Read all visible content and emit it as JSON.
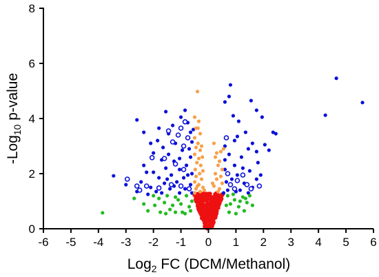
{
  "chart_data": {
    "type": "scatter",
    "title": "",
    "xlabel": {
      "base": "Log",
      "sub": "2",
      "rest": " FC (DCM/Methanol)"
    },
    "ylabel": {
      "base": "-Log",
      "sub": "10",
      "rest": " p-value"
    },
    "xlim": [
      -6,
      6
    ],
    "ylim": [
      0,
      8
    ],
    "xticks": [
      -6,
      -5,
      -4,
      -3,
      -2,
      -1,
      0,
      1,
      2,
      3,
      4,
      5,
      6
    ],
    "yticks": [
      0,
      2,
      4,
      6,
      8
    ],
    "grid": false,
    "colors": {
      "blue": "#0a10d8",
      "orange": "#f7a04a",
      "green": "#22bb22",
      "red": "#ee1111"
    },
    "point_groups": [
      {
        "id": "blue-filled",
        "color": "blue",
        "marker": "filled",
        "points": [
          [
            4.65,
            5.46
          ],
          [
            5.6,
            4.58
          ],
          [
            4.25,
            4.12
          ],
          [
            0.8,
            5.22
          ],
          [
            0.75,
            4.8
          ],
          [
            1.55,
            4.65
          ],
          [
            0.6,
            4.6
          ],
          [
            1.75,
            4.3
          ],
          [
            1.95,
            4.05
          ],
          [
            0.9,
            4.1
          ],
          [
            1.1,
            3.9
          ],
          [
            -1.55,
            4.25
          ],
          [
            -1.0,
            4.05
          ],
          [
            -0.85,
            4.3
          ],
          [
            -0.65,
            3.5
          ],
          [
            -1.3,
            3.75
          ],
          [
            -2.6,
            3.95
          ],
          [
            -2.35,
            3.5
          ],
          [
            -1.8,
            3.65
          ],
          [
            -1.45,
            3.45
          ],
          [
            -0.75,
            3.85
          ],
          [
            -0.55,
            3.6
          ],
          [
            2.45,
            3.45
          ],
          [
            2.35,
            3.5
          ],
          [
            1.35,
            3.5
          ],
          [
            1.6,
            3.1
          ],
          [
            2.05,
            3.05
          ],
          [
            1.05,
            3.35
          ],
          [
            0.95,
            3.2
          ],
          [
            0.6,
            3.0
          ],
          [
            1.75,
            2.8
          ],
          [
            2.2,
            2.85
          ],
          [
            1.45,
            2.9
          ],
          [
            1.2,
            2.6
          ],
          [
            0.75,
            2.7
          ],
          [
            0.6,
            2.5
          ],
          [
            1.8,
            2.4
          ],
          [
            0.95,
            2.3
          ],
          [
            1.25,
            2.2
          ],
          [
            0.6,
            2.15
          ],
          [
            1.5,
            2.1
          ],
          [
            1.9,
            1.95
          ],
          [
            1.05,
            1.95
          ],
          [
            0.85,
            1.8
          ],
          [
            0.65,
            1.7
          ],
          [
            1.3,
            1.65
          ],
          [
            1.6,
            1.5
          ],
          [
            0.7,
            1.4
          ],
          [
            1.0,
            1.35
          ],
          [
            1.45,
            1.3
          ],
          [
            0.55,
            1.3
          ],
          [
            1.75,
            1.8
          ],
          [
            1.15,
            1.4
          ],
          [
            -2.1,
            3.1
          ],
          [
            -1.65,
            2.95
          ],
          [
            -1.2,
            3.1
          ],
          [
            -0.6,
            3.15
          ],
          [
            -2.0,
            2.75
          ],
          [
            -1.45,
            2.7
          ],
          [
            -0.95,
            2.85
          ],
          [
            -0.65,
            2.6
          ],
          [
            -1.7,
            2.5
          ],
          [
            -1.25,
            2.45
          ],
          [
            -2.35,
            2.3
          ],
          [
            -0.8,
            2.3
          ],
          [
            -1.55,
            2.2
          ],
          [
            -1.05,
            2.15
          ],
          [
            -2.0,
            2.05
          ],
          [
            -0.6,
            2.0
          ],
          [
            -1.35,
            1.95
          ],
          [
            -1.8,
            1.85
          ],
          [
            -0.9,
            1.85
          ],
          [
            -2.45,
            1.7
          ],
          [
            -1.6,
            1.65
          ],
          [
            -1.15,
            1.7
          ],
          [
            -0.65,
            1.6
          ],
          [
            -2.1,
            1.5
          ],
          [
            -1.4,
            1.45
          ],
          [
            -0.85,
            1.45
          ],
          [
            -1.9,
            1.35
          ],
          [
            -2.6,
            1.35
          ],
          [
            -1.05,
            1.3
          ],
          [
            -0.6,
            1.3
          ],
          [
            -3.45,
            1.92
          ],
          [
            -3.0,
            1.6
          ],
          [
            -1.7,
            1.3
          ],
          [
            -2.2,
            1.25
          ],
          [
            -1.25,
            1.55
          ],
          [
            -0.7,
            2.9
          ],
          [
            -1.85,
            3.2
          ],
          [
            -1.05,
            2.55
          ],
          [
            -0.75,
            1.95
          ],
          [
            -2.25,
            2.05
          ],
          [
            -1.5,
            1.8
          ]
        ]
      },
      {
        "id": "blue-open",
        "color": "blue",
        "marker": "open",
        "points": [
          [
            -0.85,
            3.88
          ],
          [
            -1.0,
            3.65
          ],
          [
            -1.45,
            3.55
          ],
          [
            -1.1,
            3.4
          ],
          [
            -0.75,
            3.3
          ],
          [
            -1.3,
            3.15
          ],
          [
            -0.9,
            3.0
          ],
          [
            -2.05,
            2.58
          ],
          [
            -1.6,
            2.55
          ],
          [
            -1.2,
            2.35
          ],
          [
            -0.9,
            2.15
          ],
          [
            -2.25,
            1.55
          ],
          [
            -1.8,
            1.48
          ],
          [
            -1.35,
            1.6
          ],
          [
            -2.5,
            1.4
          ],
          [
            -2.95,
            1.8
          ],
          [
            -2.6,
            1.55
          ],
          [
            -1.0,
            1.55
          ],
          [
            -0.7,
            1.45
          ],
          [
            0.65,
            3.3
          ],
          [
            0.7,
            2.0
          ],
          [
            1.05,
            1.75
          ],
          [
            0.95,
            1.45
          ],
          [
            1.25,
            1.95
          ],
          [
            1.55,
            1.45
          ],
          [
            0.8,
            1.6
          ],
          [
            1.4,
            1.6
          ],
          [
            1.85,
            1.55
          ]
        ]
      },
      {
        "id": "orange",
        "color": "orange",
        "marker": "filled",
        "points": [
          [
            -0.4,
            4.98
          ],
          [
            -0.5,
            4.05
          ],
          [
            -0.35,
            3.9
          ],
          [
            -0.45,
            3.65
          ],
          [
            -0.3,
            3.45
          ],
          [
            -0.5,
            3.3
          ],
          [
            -0.38,
            3.1
          ],
          [
            -0.45,
            2.95
          ],
          [
            -0.3,
            2.85
          ],
          [
            -0.5,
            2.7
          ],
          [
            -0.35,
            2.55
          ],
          [
            -0.42,
            2.4
          ],
          [
            -0.28,
            2.3
          ],
          [
            -0.48,
            2.15
          ],
          [
            -0.32,
            2.0
          ],
          [
            -0.45,
            1.9
          ],
          [
            -0.25,
            1.8
          ],
          [
            -0.5,
            1.7
          ],
          [
            -0.35,
            1.6
          ],
          [
            -0.2,
            1.5
          ],
          [
            -0.45,
            1.45
          ],
          [
            -0.3,
            1.35
          ],
          [
            -0.5,
            1.3
          ],
          [
            -0.22,
            2.6
          ],
          [
            -0.38,
            3.65
          ],
          [
            -0.25,
            3.0
          ],
          [
            -0.2,
            2.1
          ],
          [
            -0.4,
            1.55
          ],
          [
            -0.15,
            1.4
          ],
          [
            0.2,
            3.1
          ],
          [
            0.3,
            2.75
          ],
          [
            0.25,
            2.6
          ],
          [
            0.4,
            2.45
          ],
          [
            0.35,
            2.3
          ],
          [
            0.5,
            2.15
          ],
          [
            0.25,
            2.0
          ],
          [
            0.45,
            1.9
          ],
          [
            0.3,
            1.8
          ],
          [
            0.5,
            1.65
          ],
          [
            0.2,
            1.55
          ],
          [
            0.4,
            1.45
          ],
          [
            0.35,
            1.35
          ],
          [
            0.15,
            1.65
          ],
          [
            0.45,
            2.8
          ],
          [
            0.55,
            2.9
          ]
        ]
      },
      {
        "id": "green",
        "color": "green",
        "marker": "filled",
        "points": [
          [
            -3.85,
            0.58
          ],
          [
            -2.7,
            1.1
          ],
          [
            -2.35,
            0.9
          ],
          [
            -2.2,
            0.65
          ],
          [
            -1.8,
            1.1
          ],
          [
            -1.95,
            0.85
          ],
          [
            -1.6,
            0.95
          ],
          [
            -1.4,
            0.7
          ],
          [
            -1.55,
            0.55
          ],
          [
            -1.2,
            1.15
          ],
          [
            -1.0,
            0.9
          ],
          [
            -0.95,
            0.6
          ],
          [
            -0.8,
            1.2
          ],
          [
            -0.7,
            0.8
          ],
          [
            -0.6,
            1.0
          ],
          [
            -1.75,
            0.6
          ],
          [
            -2.0,
            1.2
          ],
          [
            -1.3,
            0.85
          ],
          [
            -0.85,
            0.55
          ],
          [
            -1.1,
            1.05
          ],
          [
            -0.65,
            0.65
          ],
          [
            -1.5,
            1.2
          ],
          [
            -1.2,
            0.6
          ],
          [
            0.7,
            1.2
          ],
          [
            0.8,
            0.9
          ],
          [
            0.95,
            1.05
          ],
          [
            1.1,
            0.8
          ],
          [
            1.25,
            1.15
          ],
          [
            1.4,
            0.95
          ],
          [
            1.6,
            0.85
          ],
          [
            0.75,
            0.6
          ],
          [
            1.0,
            0.55
          ],
          [
            1.3,
            0.65
          ],
          [
            0.9,
            1.25
          ],
          [
            1.5,
            1.2
          ],
          [
            1.15,
            1.0
          ],
          [
            0.65,
            0.85
          ],
          [
            1.35,
            1.1
          ]
        ]
      }
    ],
    "red_cloud": {
      "color": "red",
      "count": 400,
      "y_max": 1.3,
      "half_width_at_top": 0.58,
      "half_width_at_bottom": 0.12,
      "x_min": -0.62,
      "x_max": 0.62
    }
  }
}
